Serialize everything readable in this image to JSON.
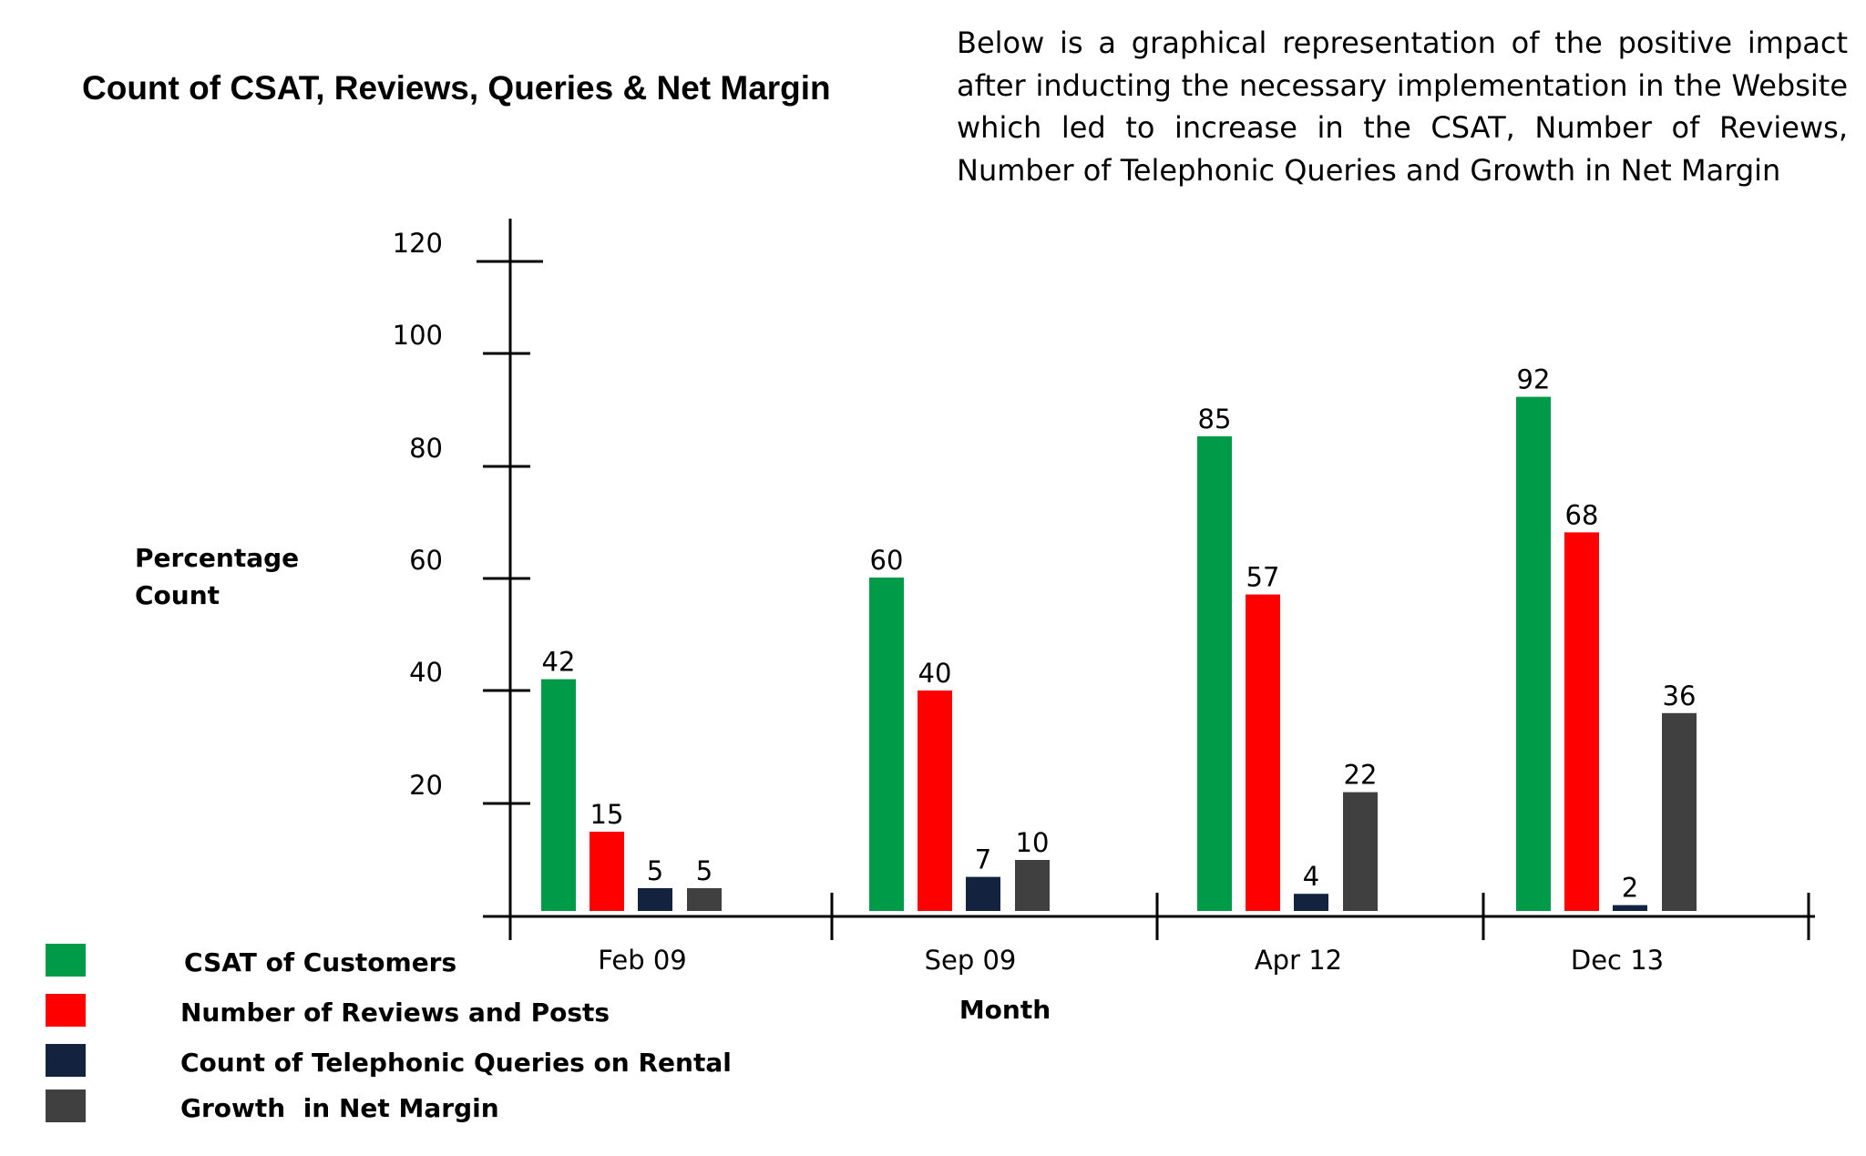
{
  "title": "Count of CSAT, Reviews, Queries & Net Margin",
  "description": "Below is a graphical representation of the positive impact after inducting the necessary implementation in the Website which led to increase in the CSAT, Number of Reviews, Number of Telephonic Queries and Growth in Net Margin",
  "chart_data": {
    "type": "bar",
    "title": "Count of CSAT, Reviews, Queries & Net Margin",
    "xlabel": "Month",
    "ylabel_lines": [
      "Percentage",
      "Count"
    ],
    "categories": [
      "Feb 09",
      "Sep 09",
      "Apr 12",
      "Dec 13"
    ],
    "y_ticks": [
      20,
      40,
      60,
      80,
      100,
      120
    ],
    "ylim": [
      0,
      120
    ],
    "grid": false,
    "legend_position": "bottom-left",
    "series": [
      {
        "name": "CSAT of Customers",
        "color": "#009b48",
        "values": [
          42,
          60,
          85,
          92
        ]
      },
      {
        "name": "Number of Reviews and Posts",
        "color": "#ff0000",
        "values": [
          15,
          40,
          57,
          68
        ]
      },
      {
        "name": "Count of Telephonic Queries on Rental",
        "color": "#12223f",
        "values": [
          5,
          7,
          4,
          2
        ]
      },
      {
        "name": "Growth  in Net Margin",
        "color": "#404040",
        "values": [
          5,
          10,
          22,
          36
        ]
      }
    ]
  }
}
